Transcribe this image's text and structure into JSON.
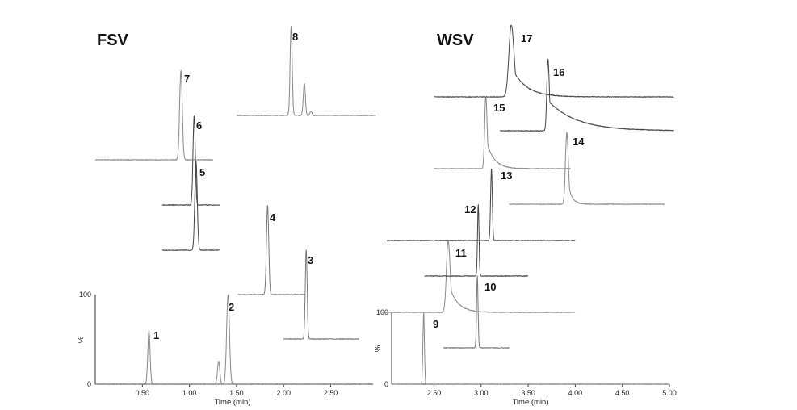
{
  "chart_data": [
    {
      "type": "line",
      "title": "FSV",
      "xlabel": "Time (min)",
      "ylabel": "%",
      "x_ticks": [
        "0.50",
        "1.00",
        "1.50",
        "2.00",
        "2.50"
      ],
      "xlim": [
        0.0,
        2.95
      ],
      "y_ticks": [
        "0",
        "100"
      ],
      "ylim": [
        0,
        100
      ],
      "traces": [
        {
          "label": "1",
          "color": "#888888",
          "x_range": [
            0.0,
            2.9
          ],
          "peaks": [
            {
              "x": 0.57,
              "height": 60,
              "width": 0.012
            }
          ]
        },
        {
          "label": "2",
          "color": "#888888",
          "x_range": [
            0.0,
            2.9
          ],
          "peaks": [
            {
              "x": 1.31,
              "height": 26,
              "width": 0.012
            },
            {
              "x": 1.41,
              "height": 100,
              "width": 0.015
            }
          ]
        },
        {
          "label": "3",
          "color": "#777777",
          "x_range": [
            2.0,
            2.8
          ],
          "peaks": [
            {
              "x": 2.24,
              "height": 100,
              "width": 0.01
            }
          ]
        },
        {
          "label": "4",
          "color": "#777777",
          "x_range": [
            1.52,
            2.23
          ],
          "peaks": [
            {
              "x": 1.83,
              "height": 100,
              "width": 0.012
            }
          ]
        },
        {
          "label": "5",
          "color": "#444444",
          "x_range": [
            0.71,
            1.32
          ],
          "peaks": [
            {
              "x": 1.07,
              "height": 100,
              "width": 0.013
            }
          ]
        },
        {
          "label": "6",
          "color": "#444444",
          "x_range": [
            0.71,
            1.32
          ],
          "peaks": [
            {
              "x": 1.05,
              "height": 100,
              "width": 0.012
            }
          ]
        },
        {
          "label": "7",
          "color": "#888888",
          "x_range": [
            0.0,
            1.25
          ],
          "peaks": [
            {
              "x": 0.91,
              "height": 100,
              "width": 0.014
            }
          ]
        },
        {
          "label": "8",
          "color": "#888888",
          "x_range": [
            1.5,
            2.98
          ],
          "peaks": [
            {
              "x": 2.08,
              "height": 100,
              "width": 0.011
            },
            {
              "x": 2.22,
              "height": 36,
              "width": 0.011
            },
            {
              "x": 2.29,
              "height": 5,
              "width": 0.01
            }
          ]
        }
      ]
    },
    {
      "type": "line",
      "title": "WSV",
      "xlabel": "Time (min)",
      "ylabel": "%",
      "x_ticks": [
        "2.50",
        "3.00",
        "3.50",
        "4.00",
        "4.50",
        "5.00"
      ],
      "xlim": [
        2.05,
        5.0
      ],
      "y_ticks": [
        "0",
        "100"
      ],
      "ylim": [
        0,
        100
      ],
      "traces": [
        {
          "label": "9",
          "color": "#888888",
          "x_range": [
            2.05,
            5.0
          ],
          "peaks": [
            {
              "x": 2.39,
              "height": 100,
              "width": 0.008
            }
          ]
        },
        {
          "label": "10",
          "color": "#777777",
          "x_range": [
            2.6,
            3.3
          ],
          "peaks": [
            {
              "x": 2.96,
              "height": 100,
              "width": 0.008
            }
          ]
        },
        {
          "label": "11",
          "color": "#888888",
          "x_range": [
            1.95,
            4.0
          ],
          "peaks": [
            {
              "x": 2.65,
              "height": 100,
              "width": 0.018,
              "tail": 0.09
            }
          ]
        },
        {
          "label": "12",
          "color": "#444444",
          "x_range": [
            2.4,
            3.5
          ],
          "peaks": [
            {
              "x": 2.97,
              "height": 100,
              "width": 0.008
            }
          ]
        },
        {
          "label": "13",
          "color": "#444444",
          "x_range": [
            2.0,
            4.0
          ],
          "peaks": [
            {
              "x": 3.11,
              "height": 100,
              "width": 0.009
            }
          ]
        },
        {
          "label": "14",
          "color": "#888888",
          "x_range": [
            3.3,
            4.95
          ],
          "peaks": [
            {
              "x": 3.91,
              "height": 100,
              "width": 0.014,
              "tail": 0.04
            }
          ]
        },
        {
          "label": "15",
          "color": "#888888",
          "x_range": [
            2.5,
            3.95
          ],
          "peaks": [
            {
              "x": 3.05,
              "height": 100,
              "width": 0.012,
              "tail": 0.08
            }
          ]
        },
        {
          "label": "16",
          "color": "#444444",
          "x_range": [
            3.2,
            5.05
          ],
          "peaks": [
            {
              "x": 3.71,
              "height": 100,
              "width": 0.012,
              "tail": 0.3
            }
          ]
        },
        {
          "label": "17",
          "color": "#444444",
          "x_range": [
            2.5,
            5.05
          ],
          "peaks": [
            {
              "x": 3.32,
              "height": 100,
              "width": 0.025,
              "tail": 0.15
            }
          ]
        }
      ]
    }
  ]
}
